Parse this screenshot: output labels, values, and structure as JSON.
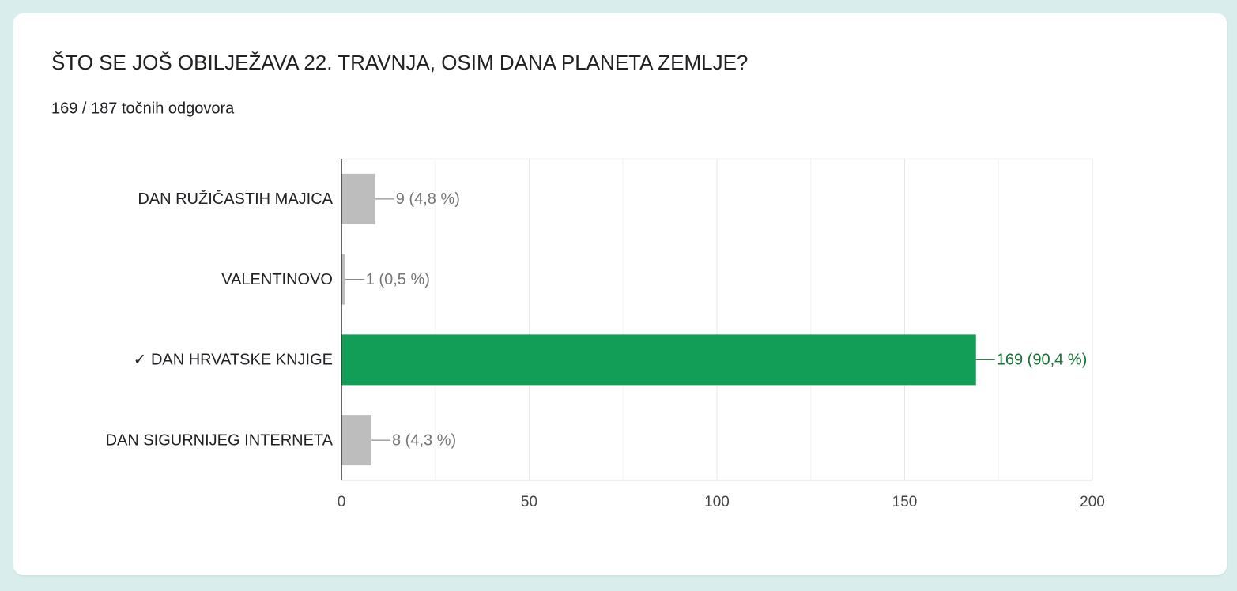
{
  "chart_data": {
    "type": "hbar",
    "title": "ŠTO SE JOŠ OBILJEŽAVA 22. TRAVNJA, OSIM DANA PLANETA ZEMLJE?",
    "subtitle": "169 / 187 točnih odgovora",
    "categories": [
      "DAN RUŽIČASTIH MAJICA",
      "VALENTINOVO",
      "✓ DAN HRVATSKE KNJIGE",
      "DAN SIGURNIJEG INTERNETA"
    ],
    "values": [
      9,
      1,
      169,
      8
    ],
    "value_labels": [
      "9 (4,8 %)",
      "1 (0,5 %)",
      "169 (90,4 %)",
      "8 (4,3 %)"
    ],
    "colors": [
      "#bdbdbd",
      "#bdbdbd",
      "#129e57",
      "#bdbdbd"
    ],
    "label_colors": [
      "#757575",
      "#757575",
      "#137333",
      "#757575"
    ],
    "xlim": [
      0,
      200
    ],
    "xticks": [
      0,
      50,
      100,
      150,
      200
    ],
    "minor_gridlines": [
      25,
      75,
      125,
      175
    ],
    "grid": true
  }
}
